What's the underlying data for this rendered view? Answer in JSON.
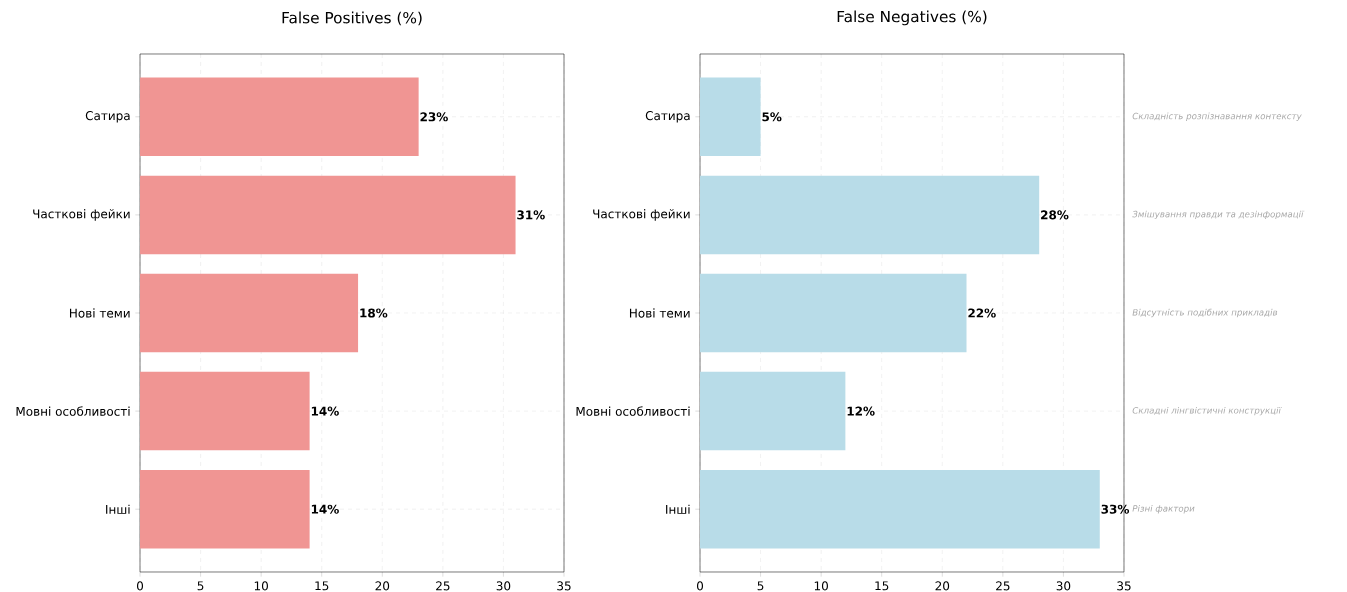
{
  "chart_data": [
    {
      "type": "bar",
      "orientation": "horizontal",
      "title": "False Positives (%)",
      "categories": [
        "Сатира",
        "Часткові фейки",
        "Нові теми",
        "Мовні особливості",
        "Інші"
      ],
      "values": [
        23,
        31,
        18,
        14,
        14
      ],
      "color": "#f09593",
      "value_labels": [
        "23%",
        "31%",
        "18%",
        "14%",
        "14%"
      ],
      "xlim": [
        0,
        35
      ],
      "xticks": [
        0,
        5,
        10,
        15,
        20,
        25,
        30,
        35
      ],
      "grid": true
    },
    {
      "type": "bar",
      "orientation": "horizontal",
      "title": "False Negatives (%)",
      "categories": [
        "Сатира",
        "Часткові фейки",
        "Нові теми",
        "Мовні особливості",
        "Інші"
      ],
      "values": [
        5,
        28,
        22,
        12,
        33
      ],
      "color": "#b8dce8",
      "value_labels": [
        "5%",
        "28%",
        "22%",
        "12%",
        "33%"
      ],
      "xlim": [
        0,
        35
      ],
      "xticks": [
        0,
        5,
        10,
        15,
        20,
        25,
        30,
        35
      ],
      "grid": true,
      "annotations": [
        "Складність розпізнавання контексту",
        "Змішування правди та дезінформації",
        "Відсутність подібних прикладів",
        "Складні лінгвістичні конструкції",
        "Різні фактори"
      ]
    }
  ]
}
